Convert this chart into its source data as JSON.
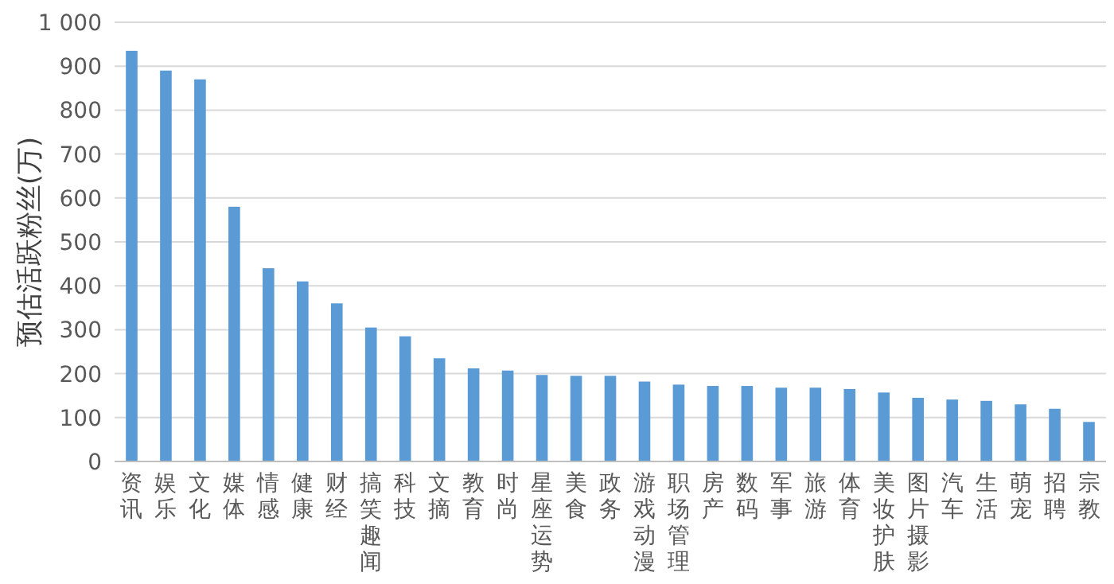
{
  "chart_data": {
    "type": "bar",
    "ylabel": "预估活跃粉丝(万)",
    "categories": [
      "资讯",
      "娱乐",
      "文化",
      "媒体",
      "情感",
      "健康",
      "财经",
      "搞笑趣闻",
      "科技",
      "文摘",
      "教育",
      "时尚",
      "星座运势",
      "美食",
      "政务",
      "游戏动漫",
      "职场管理",
      "房产",
      "数码",
      "军事",
      "旅游",
      "体育",
      "美妆护肤",
      "图片摄影",
      "汽车",
      "生活",
      "萌宠",
      "招聘",
      "宗教"
    ],
    "values": [
      935,
      890,
      870,
      580,
      440,
      410,
      360,
      305,
      285,
      235,
      212,
      207,
      197,
      195,
      195,
      182,
      175,
      172,
      172,
      168,
      168,
      165,
      157,
      145,
      141,
      138,
      130,
      120,
      90
    ],
    "color": "#5b9bd5",
    "ylim": [
      0,
      1000
    ],
    "yticks": [
      0,
      100,
      200,
      300,
      400,
      500,
      600,
      700,
      800,
      900,
      {
        "value": 1000,
        "label": "1 000"
      }
    ],
    "grid": "y"
  }
}
